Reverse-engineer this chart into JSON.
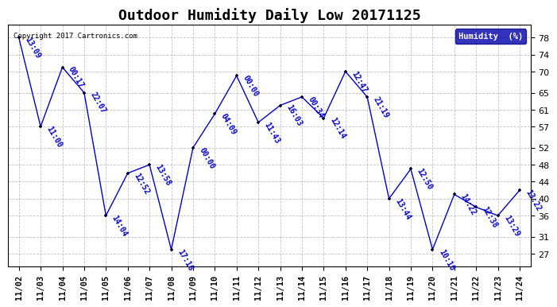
{
  "title": "Outdoor Humidity Daily Low 20171125",
  "copyright": "Copyright 2017 Cartronics.com",
  "legend_label": "Humidity  (%)",
  "x_tick_labels": [
    "11/02",
    "11/03",
    "11/04",
    "11/05",
    "11/05",
    "11/06",
    "11/07",
    "11/08",
    "11/09",
    "11/10",
    "11/11",
    "11/12",
    "11/13",
    "11/14",
    "11/15",
    "11/16",
    "11/17",
    "11/18",
    "11/19",
    "11/20",
    "11/21",
    "11/22",
    "11/23",
    "11/24"
  ],
  "values": [
    78,
    57,
    71,
    65,
    36,
    46,
    48,
    28,
    52,
    60,
    69,
    58,
    62,
    64,
    59,
    70,
    64,
    40,
    47,
    28,
    41,
    38,
    36,
    42
  ],
  "annotations": [
    "13:09",
    "11:00",
    "00:17",
    "22:07",
    "14:04",
    "12:52",
    "13:58",
    "17:16",
    "00:00",
    "04:09",
    "00:00",
    "11:43",
    "16:03",
    "00:34",
    "12:14",
    "12:47",
    "21:19",
    "13:44",
    "12:50",
    "10:10",
    "14:22",
    "12:38",
    "13:29",
    "13:22"
  ],
  "ylim_min": 24,
  "ylim_max": 81,
  "yticks": [
    27,
    31,
    36,
    40,
    44,
    48,
    52,
    57,
    61,
    65,
    70,
    74,
    78
  ],
  "line_color": "#0000cc",
  "marker_color": "#000033",
  "bg_color": "#ffffff",
  "grid_color": "#aaaaaa",
  "title_fontsize": 13,
  "legend_bg": "#0000aa",
  "legend_fg": "#ffffff",
  "annotation_color": "#0000cc",
  "annotation_fontsize": 7.0
}
